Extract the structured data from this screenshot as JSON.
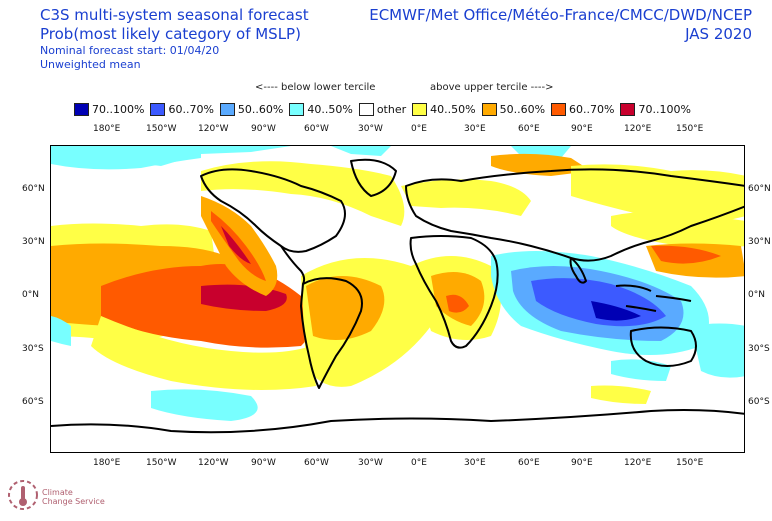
{
  "title_left": {
    "line1": "C3S multi-system seasonal forecast",
    "line2": "Prob(most likely category of MSLP)",
    "line3": "Nominal forecast start: 01/04/20",
    "line4": "Unweighted mean"
  },
  "title_right": {
    "centres": "ECMWF/Met Office/Météo-France/CMCC/DWD/NCEP",
    "season": "JAS 2020"
  },
  "tercile_labels": {
    "below": "<---- below lower tercile",
    "above": "above upper tercile ---->"
  },
  "legend": [
    {
      "label": "70..100%",
      "color": "#0000b4"
    },
    {
      "label": "60..70%",
      "color": "#3c5aff"
    },
    {
      "label": "50..60%",
      "color": "#5aaaff"
    },
    {
      "label": "40..50%",
      "color": "#78ffff"
    },
    {
      "label": "other",
      "color": "#ffffff"
    },
    {
      "label": "40..50%",
      "color": "#ffff46"
    },
    {
      "label": "50..60%",
      "color": "#ffaa00"
    },
    {
      "label": "60..70%",
      "color": "#ff5a00"
    },
    {
      "label": "70..100%",
      "color": "#c8002d"
    }
  ],
  "lon_labels": [
    "180°E",
    "150°W",
    "120°W",
    "90°W",
    "60°W",
    "30°W",
    "0°E",
    "30°E",
    "60°E",
    "90°E",
    "120°E",
    "150°E"
  ],
  "lat_labels": [
    "60°N",
    "30°N",
    "0°N",
    "30°S",
    "60°S"
  ],
  "logo": {
    "line1": "Climate",
    "line2": "Change Service"
  }
}
